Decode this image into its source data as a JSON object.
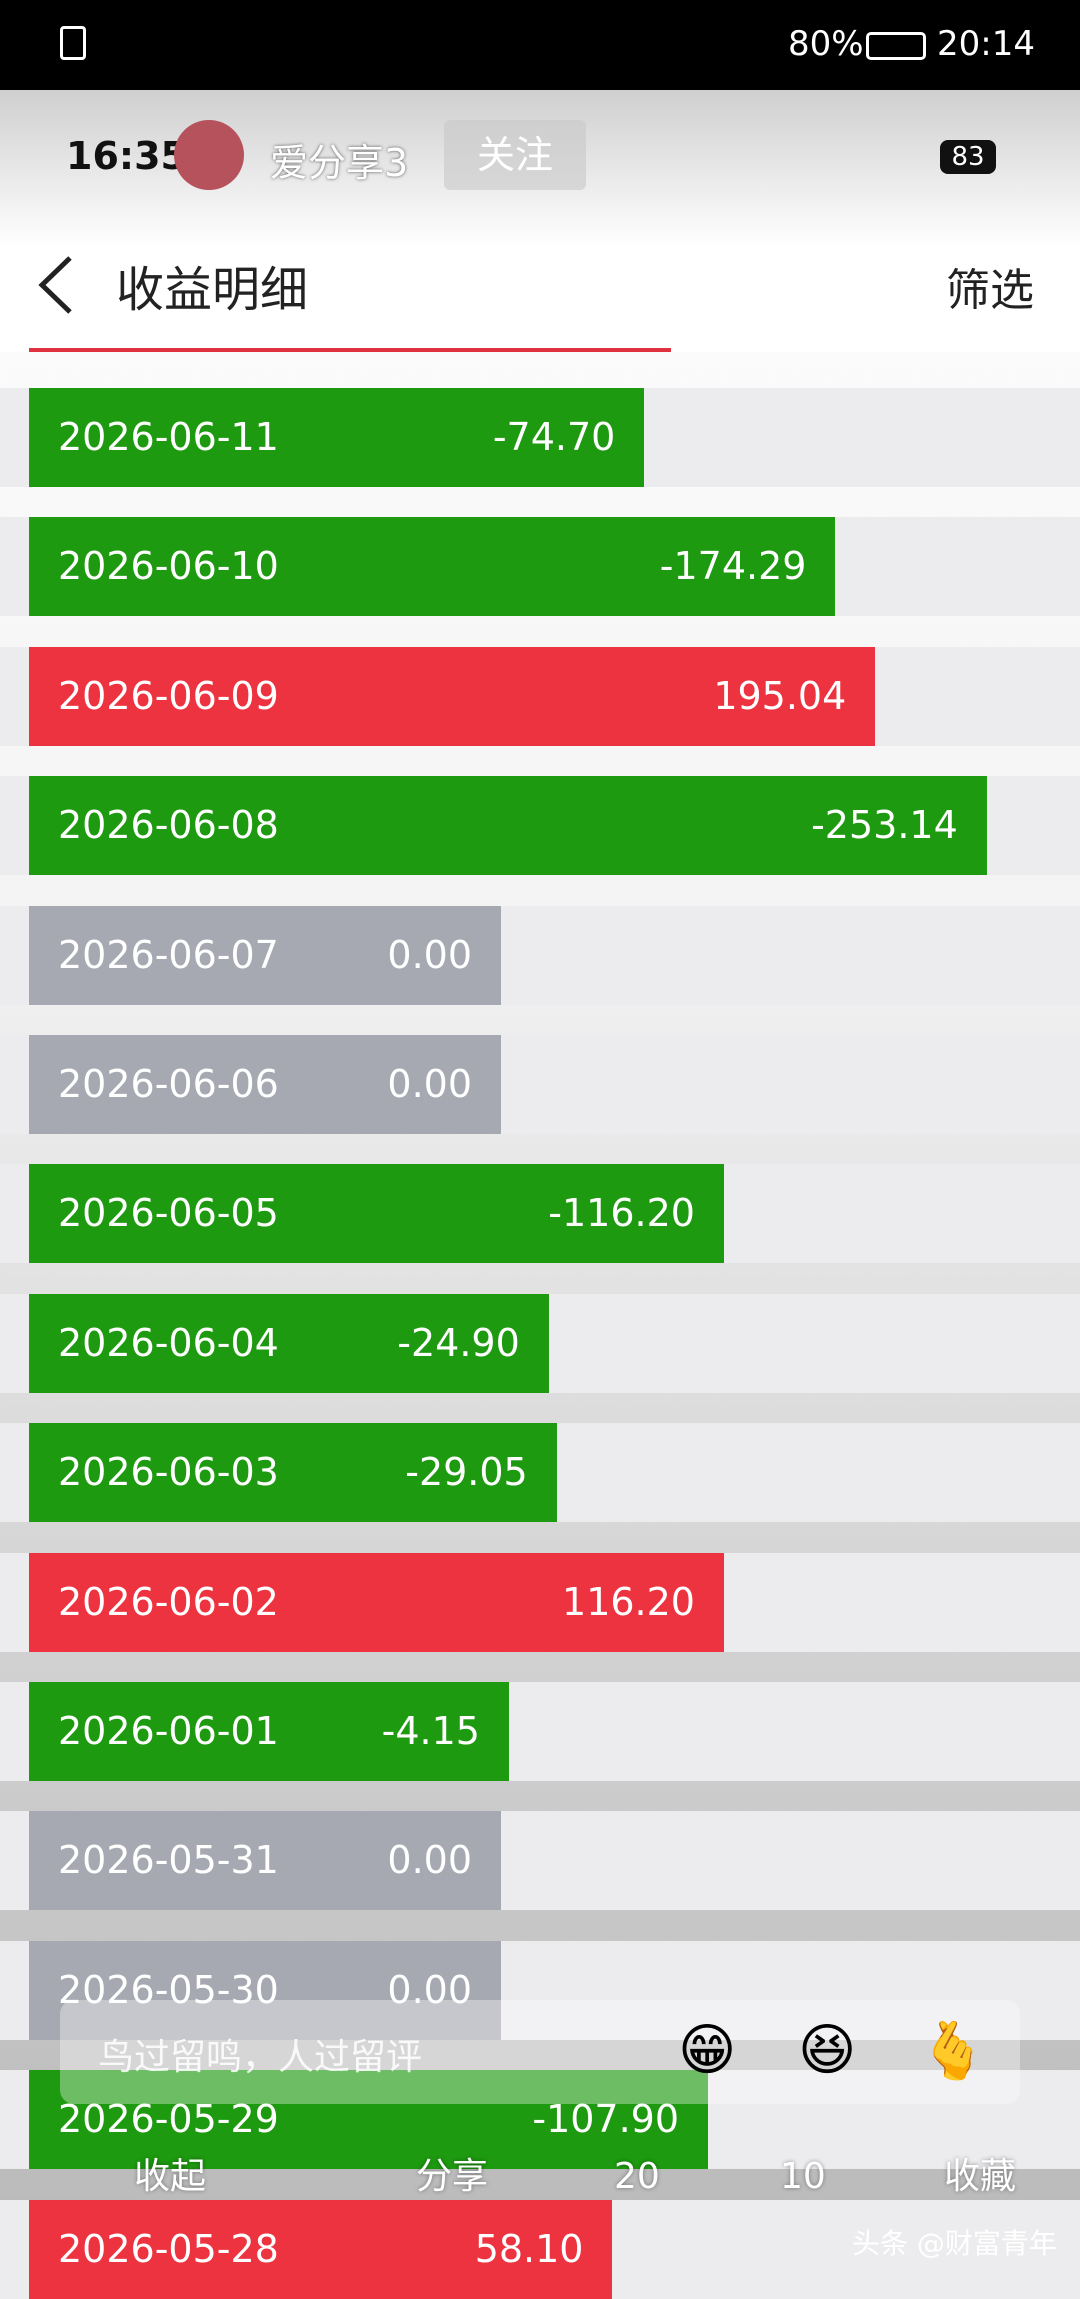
{
  "status_bar": {
    "battery": "80%",
    "time": "20:14"
  },
  "overlay_header": {
    "time": "16:35",
    "author": "爱分享3",
    "follow": "关注",
    "badge": "83"
  },
  "header": {
    "title": "收益明细",
    "filter": "筛选"
  },
  "rows": [
    {
      "date": "2026-06-11",
      "value": -74.7,
      "label": "-74.70"
    },
    {
      "date": "2026-06-10",
      "value": -174.29,
      "label": "-174.29"
    },
    {
      "date": "2026-06-09",
      "value": 195.04,
      "label": "195.04"
    },
    {
      "date": "2026-06-08",
      "value": -253.14,
      "label": "-253.14"
    },
    {
      "date": "2026-06-07",
      "value": 0,
      "label": "0.00"
    },
    {
      "date": "2026-06-06",
      "value": 0,
      "label": "0.00"
    },
    {
      "date": "2026-06-05",
      "value": -116.2,
      "label": "-116.20"
    },
    {
      "date": "2026-06-04",
      "value": -24.9,
      "label": "-24.90"
    },
    {
      "date": "2026-06-03",
      "value": -29.05,
      "label": "-29.05"
    },
    {
      "date": "2026-06-02",
      "value": 116.2,
      "label": "116.20"
    },
    {
      "date": "2026-06-01",
      "value": -4.15,
      "label": "-4.15"
    },
    {
      "date": "2026-05-31",
      "value": 0,
      "label": "0.00"
    },
    {
      "date": "2026-05-30",
      "value": 0,
      "label": "0.00"
    },
    {
      "date": "2026-05-29",
      "value": -107.9,
      "label": "-107.90"
    },
    {
      "date": "2026-05-28",
      "value": 58.1,
      "label": "58.10"
    }
  ],
  "comment_box": {
    "placeholder": "鸟过留鸣，人过留评",
    "emojis": [
      "😁",
      "😆",
      "🫰"
    ]
  },
  "bottom_bar": {
    "collapse": "收起",
    "share": "分享",
    "comments": "20",
    "likes": "10",
    "favorite": "收藏"
  },
  "watermark": "头条 @财富青年"
}
